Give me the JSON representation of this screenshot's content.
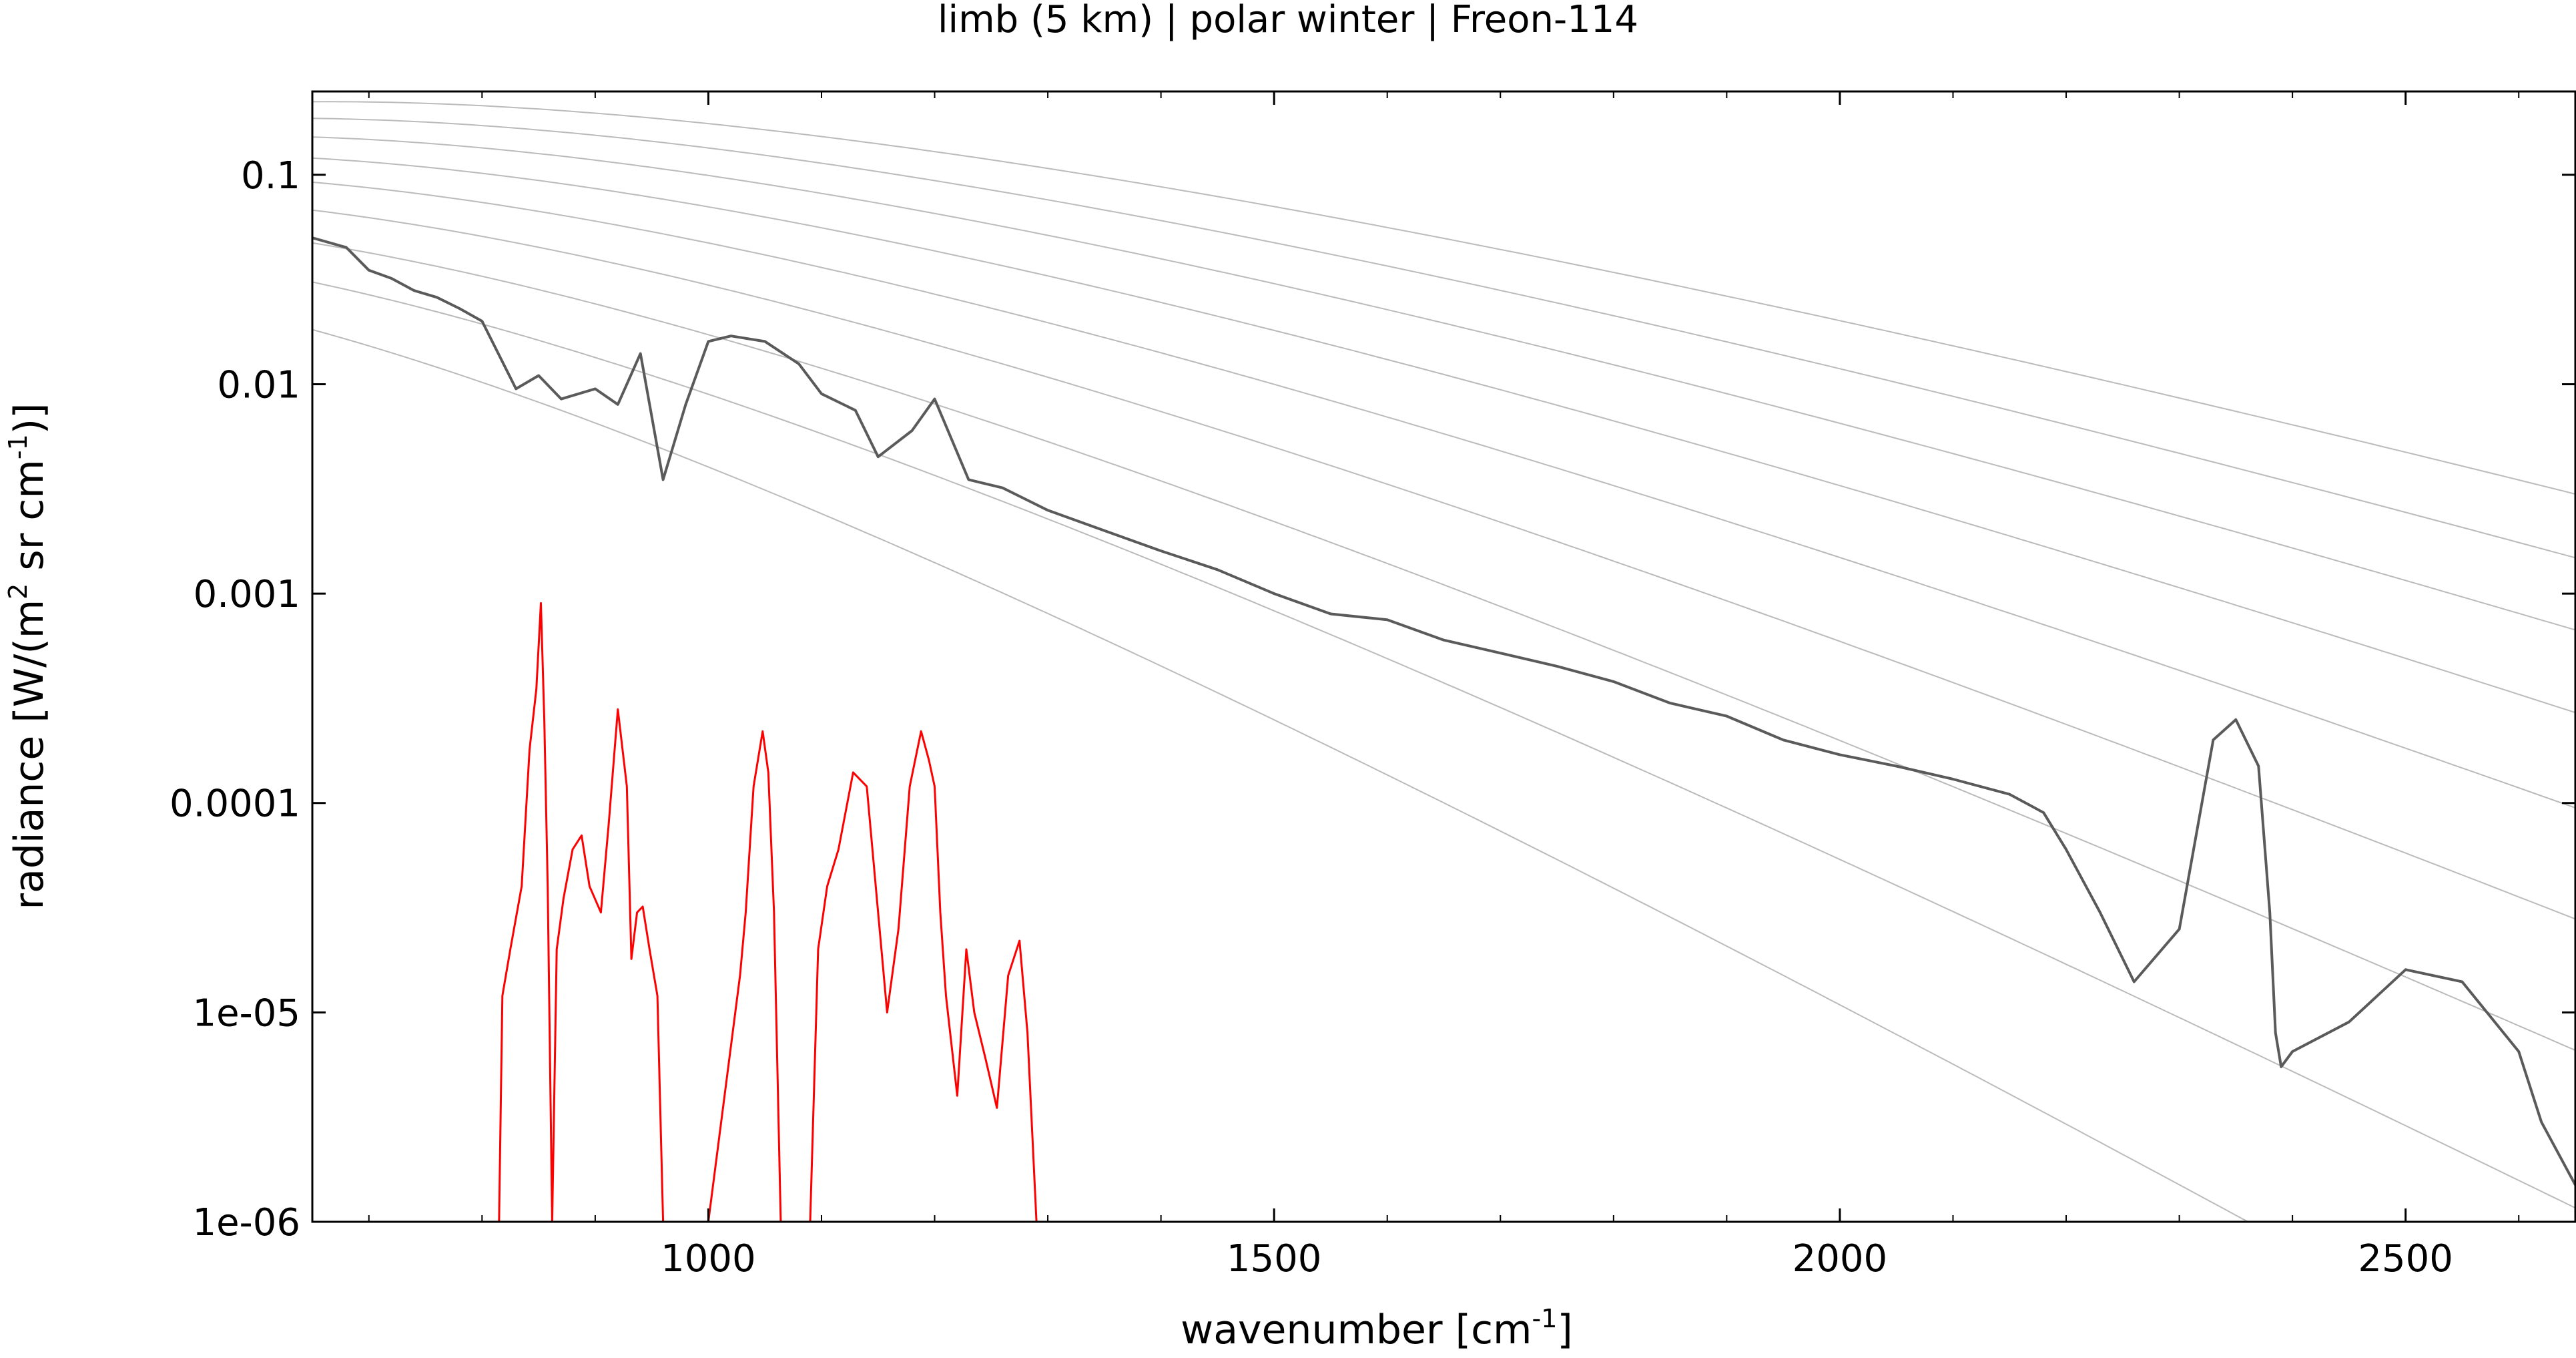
{
  "chart_data": {
    "type": "line",
    "title": "limb (5 km) | polar winter | Freon-114",
    "xlabel": {
      "text": "wavenumber [cm",
      "sup": "-1",
      "after": "]"
    },
    "ylabel": {
      "text": "radiance [W/(m",
      "sup1": "2",
      "mid": " sr cm",
      "sup2": "-1",
      "after": ")]"
    },
    "x_range": [
      650,
      2650
    ],
    "y_range": [
      1e-06,
      0.25
    ],
    "y_scale": "log",
    "grid": false,
    "x_ticks": [
      {
        "value": 1000,
        "label": "1000"
      },
      {
        "value": 1500,
        "label": "1500"
      },
      {
        "value": 2000,
        "label": "2000"
      },
      {
        "value": 2500,
        "label": "2500"
      }
    ],
    "y_ticks": [
      {
        "value": 0.1,
        "label": "0.1"
      },
      {
        "value": 0.01,
        "label": "0.01"
      },
      {
        "value": 0.001,
        "label": "0.001"
      },
      {
        "value": 0.0001,
        "label": "0.0001"
      },
      {
        "value": 1e-05,
        "label": "1e-05"
      },
      {
        "value": 1e-06,
        "label": "1e-06"
      }
    ],
    "reference_curves": {
      "kind": "blackbody",
      "temperatures_K": [
        180,
        200,
        220,
        240,
        260,
        280,
        300,
        320,
        340
      ],
      "color": "#bbbbbb"
    },
    "series": [
      {
        "role": "total-radiance",
        "color": "#5a5a5a",
        "x": [
          650,
          680,
          700,
          720,
          740,
          760,
          780,
          800,
          830,
          850,
          870,
          900,
          920,
          940,
          960,
          980,
          1000,
          1020,
          1050,
          1080,
          1100,
          1130,
          1150,
          1180,
          1200,
          1230,
          1260,
          1300,
          1350,
          1400,
          1450,
          1500,
          1550,
          1600,
          1650,
          1700,
          1750,
          1800,
          1850,
          1900,
          1950,
          2000,
          2050,
          2100,
          2150,
          2180,
          2200,
          2230,
          2260,
          2300,
          2330,
          2350,
          2370,
          2380,
          2385,
          2390,
          2400,
          2450,
          2500,
          2550,
          2600,
          2620,
          2650
        ],
        "y": [
          0.05,
          0.045,
          0.035,
          0.032,
          0.028,
          0.026,
          0.023,
          0.02,
          0.0095,
          0.011,
          0.0085,
          0.0095,
          0.008,
          0.014,
          0.0035,
          0.008,
          0.016,
          0.017,
          0.016,
          0.0125,
          0.009,
          0.0075,
          0.0045,
          0.006,
          0.0085,
          0.0035,
          0.0032,
          0.0025,
          0.002,
          0.0016,
          0.0013,
          0.001,
          0.0008,
          0.00075,
          0.0006,
          0.00052,
          0.00045,
          0.00038,
          0.0003,
          0.00026,
          0.0002,
          0.00017,
          0.00015,
          0.00013,
          0.00011,
          9e-05,
          6e-05,
          3e-05,
          1.4e-05,
          2.5e-05,
          0.0002,
          0.00025,
          0.00015,
          3e-05,
          8e-06,
          5.5e-06,
          6.5e-06,
          9e-06,
          1.6e-05,
          1.4e-05,
          6.5e-06,
          3e-06,
          1.5e-06
        ]
      },
      {
        "role": "freon-114-contribution",
        "color": "#ff0000",
        "x": [
          815,
          818,
          825,
          835,
          842,
          848,
          852,
          855,
          858,
          862,
          866,
          872,
          880,
          888,
          895,
          905,
          912,
          920,
          928,
          932,
          937,
          942,
          948,
          955,
          960,
          1000,
          1028,
          1033,
          1040,
          1048,
          1053,
          1058,
          1064,
          1090,
          1097,
          1105,
          1115,
          1128,
          1140,
          1150,
          1158,
          1168,
          1178,
          1188,
          1195,
          1200,
          1205,
          1210,
          1220,
          1228,
          1235,
          1245,
          1255,
          1265,
          1275,
          1282,
          1290
        ],
        "y": [
          1e-06,
          1.2e-05,
          2e-05,
          4e-05,
          0.00018,
          0.00035,
          0.0009,
          0.00025,
          4e-05,
          1e-06,
          2e-05,
          3.5e-05,
          6e-05,
          7e-05,
          4e-05,
          3e-05,
          8e-05,
          0.00028,
          0.00012,
          1.8e-05,
          3e-05,
          3.2e-05,
          2e-05,
          1.2e-05,
          1e-06,
          1e-06,
          1.5e-05,
          3e-05,
          0.00012,
          0.00022,
          0.00014,
          3e-05,
          1e-06,
          1e-06,
          2e-05,
          4e-05,
          6e-05,
          0.00014,
          0.00012,
          3e-05,
          1e-05,
          2.5e-05,
          0.00012,
          0.00022,
          0.00016,
          0.00012,
          3e-05,
          1.2e-05,
          4e-06,
          2e-05,
          1e-05,
          6e-06,
          3.5e-06,
          1.5e-05,
          2.2e-05,
          8e-06,
          1e-06
        ]
      }
    ]
  }
}
